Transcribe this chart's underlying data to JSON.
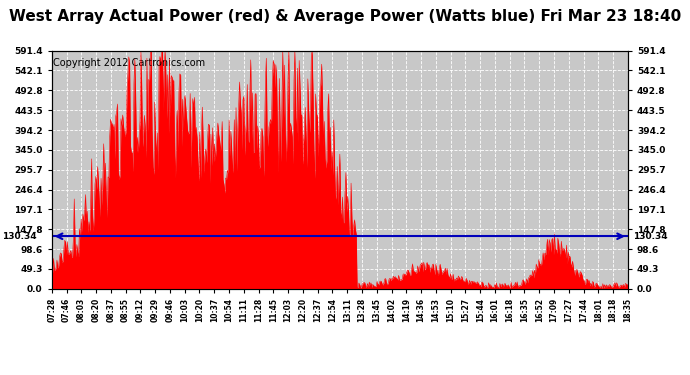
{
  "title": "West Array Actual Power (red) & Average Power (Watts blue) Fri Mar 23 18:40",
  "copyright": "Copyright 2012 Cartronics.com",
  "avg_power": 130.34,
  "ymin": 0.0,
  "ymax": 591.4,
  "yticks": [
    0.0,
    49.3,
    98.6,
    147.8,
    197.1,
    246.4,
    295.7,
    345.0,
    394.2,
    443.5,
    492.8,
    542.1,
    591.4
  ],
  "red_color": "#ff0000",
  "blue_color": "#0000bb",
  "bg_color": "#ffffff",
  "plot_bg_color": "#c8c8c8",
  "title_fontsize": 11,
  "copyright_fontsize": 7,
  "xtick_labels": [
    "07:28",
    "07:46",
    "08:03",
    "08:20",
    "08:37",
    "08:55",
    "09:12",
    "09:29",
    "09:46",
    "10:03",
    "10:20",
    "10:37",
    "10:54",
    "11:11",
    "11:28",
    "11:45",
    "12:03",
    "12:20",
    "12:37",
    "12:54",
    "13:11",
    "13:28",
    "13:45",
    "14:02",
    "14:19",
    "14:36",
    "14:53",
    "15:10",
    "15:27",
    "15:44",
    "16:01",
    "16:18",
    "16:35",
    "16:52",
    "17:09",
    "17:27",
    "17:44",
    "18:01",
    "18:18",
    "18:35"
  ]
}
